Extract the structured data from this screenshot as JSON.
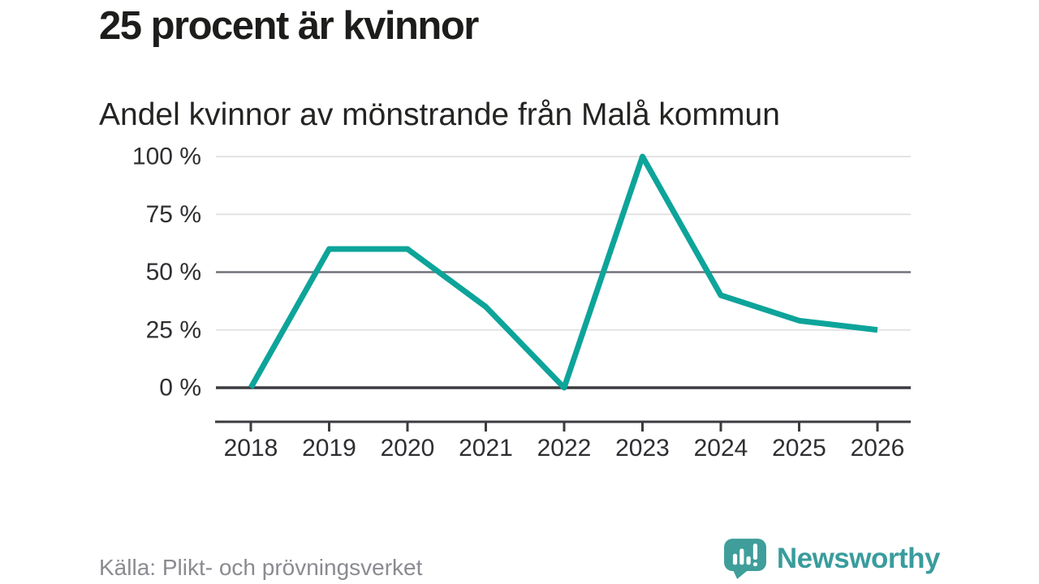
{
  "header": {
    "title": "25 procent är kvinnor",
    "subtitle": "Andel kvinnor av mönstrande från Malå kommun"
  },
  "chart_data": {
    "type": "line",
    "title": "25 procent är kvinnor",
    "subtitle": "Andel kvinnor av mönstrande från Malå kommun",
    "x": [
      2018,
      2019,
      2020,
      2021,
      2022,
      2023,
      2024,
      2025,
      2026
    ],
    "x_tick_labels": [
      "2018",
      "2019",
      "2020",
      "2021",
      "2022",
      "2023",
      "2024",
      "2025",
      "2026"
    ],
    "values": [
      0,
      60,
      60,
      35,
      0,
      100,
      40,
      29,
      25
    ],
    "series_name": "Andel kvinnor (%)",
    "y_ticks": [
      0,
      25,
      50,
      75,
      100
    ],
    "y_tick_labels": [
      "0 %",
      "25 %",
      "50 %",
      "75 %",
      "100 %"
    ],
    "ylim": [
      0,
      100
    ],
    "grid": "horizontal",
    "gridline_emphasis": {
      "0": "dark",
      "50": "medium"
    },
    "legend": "none",
    "line_color": "#0da49a"
  },
  "footer": {
    "source": "Källa: Plikt- och prövningsverket",
    "brand_name": "Newsworthy",
    "brand_icon": "speech-bubble-bar-chart-icon"
  },
  "colors": {
    "background": "#ffffff",
    "title_text": "#1d1d1b",
    "line": "#0da49a",
    "grid_light": "#e3e3e3",
    "grid_medium": "#717179",
    "grid_dark": "#3c3c40",
    "axis": "#3c3c40",
    "tick_text": "#2f2f33",
    "source_text": "#8a8a91",
    "brand_teal": "#3a9c9d"
  }
}
